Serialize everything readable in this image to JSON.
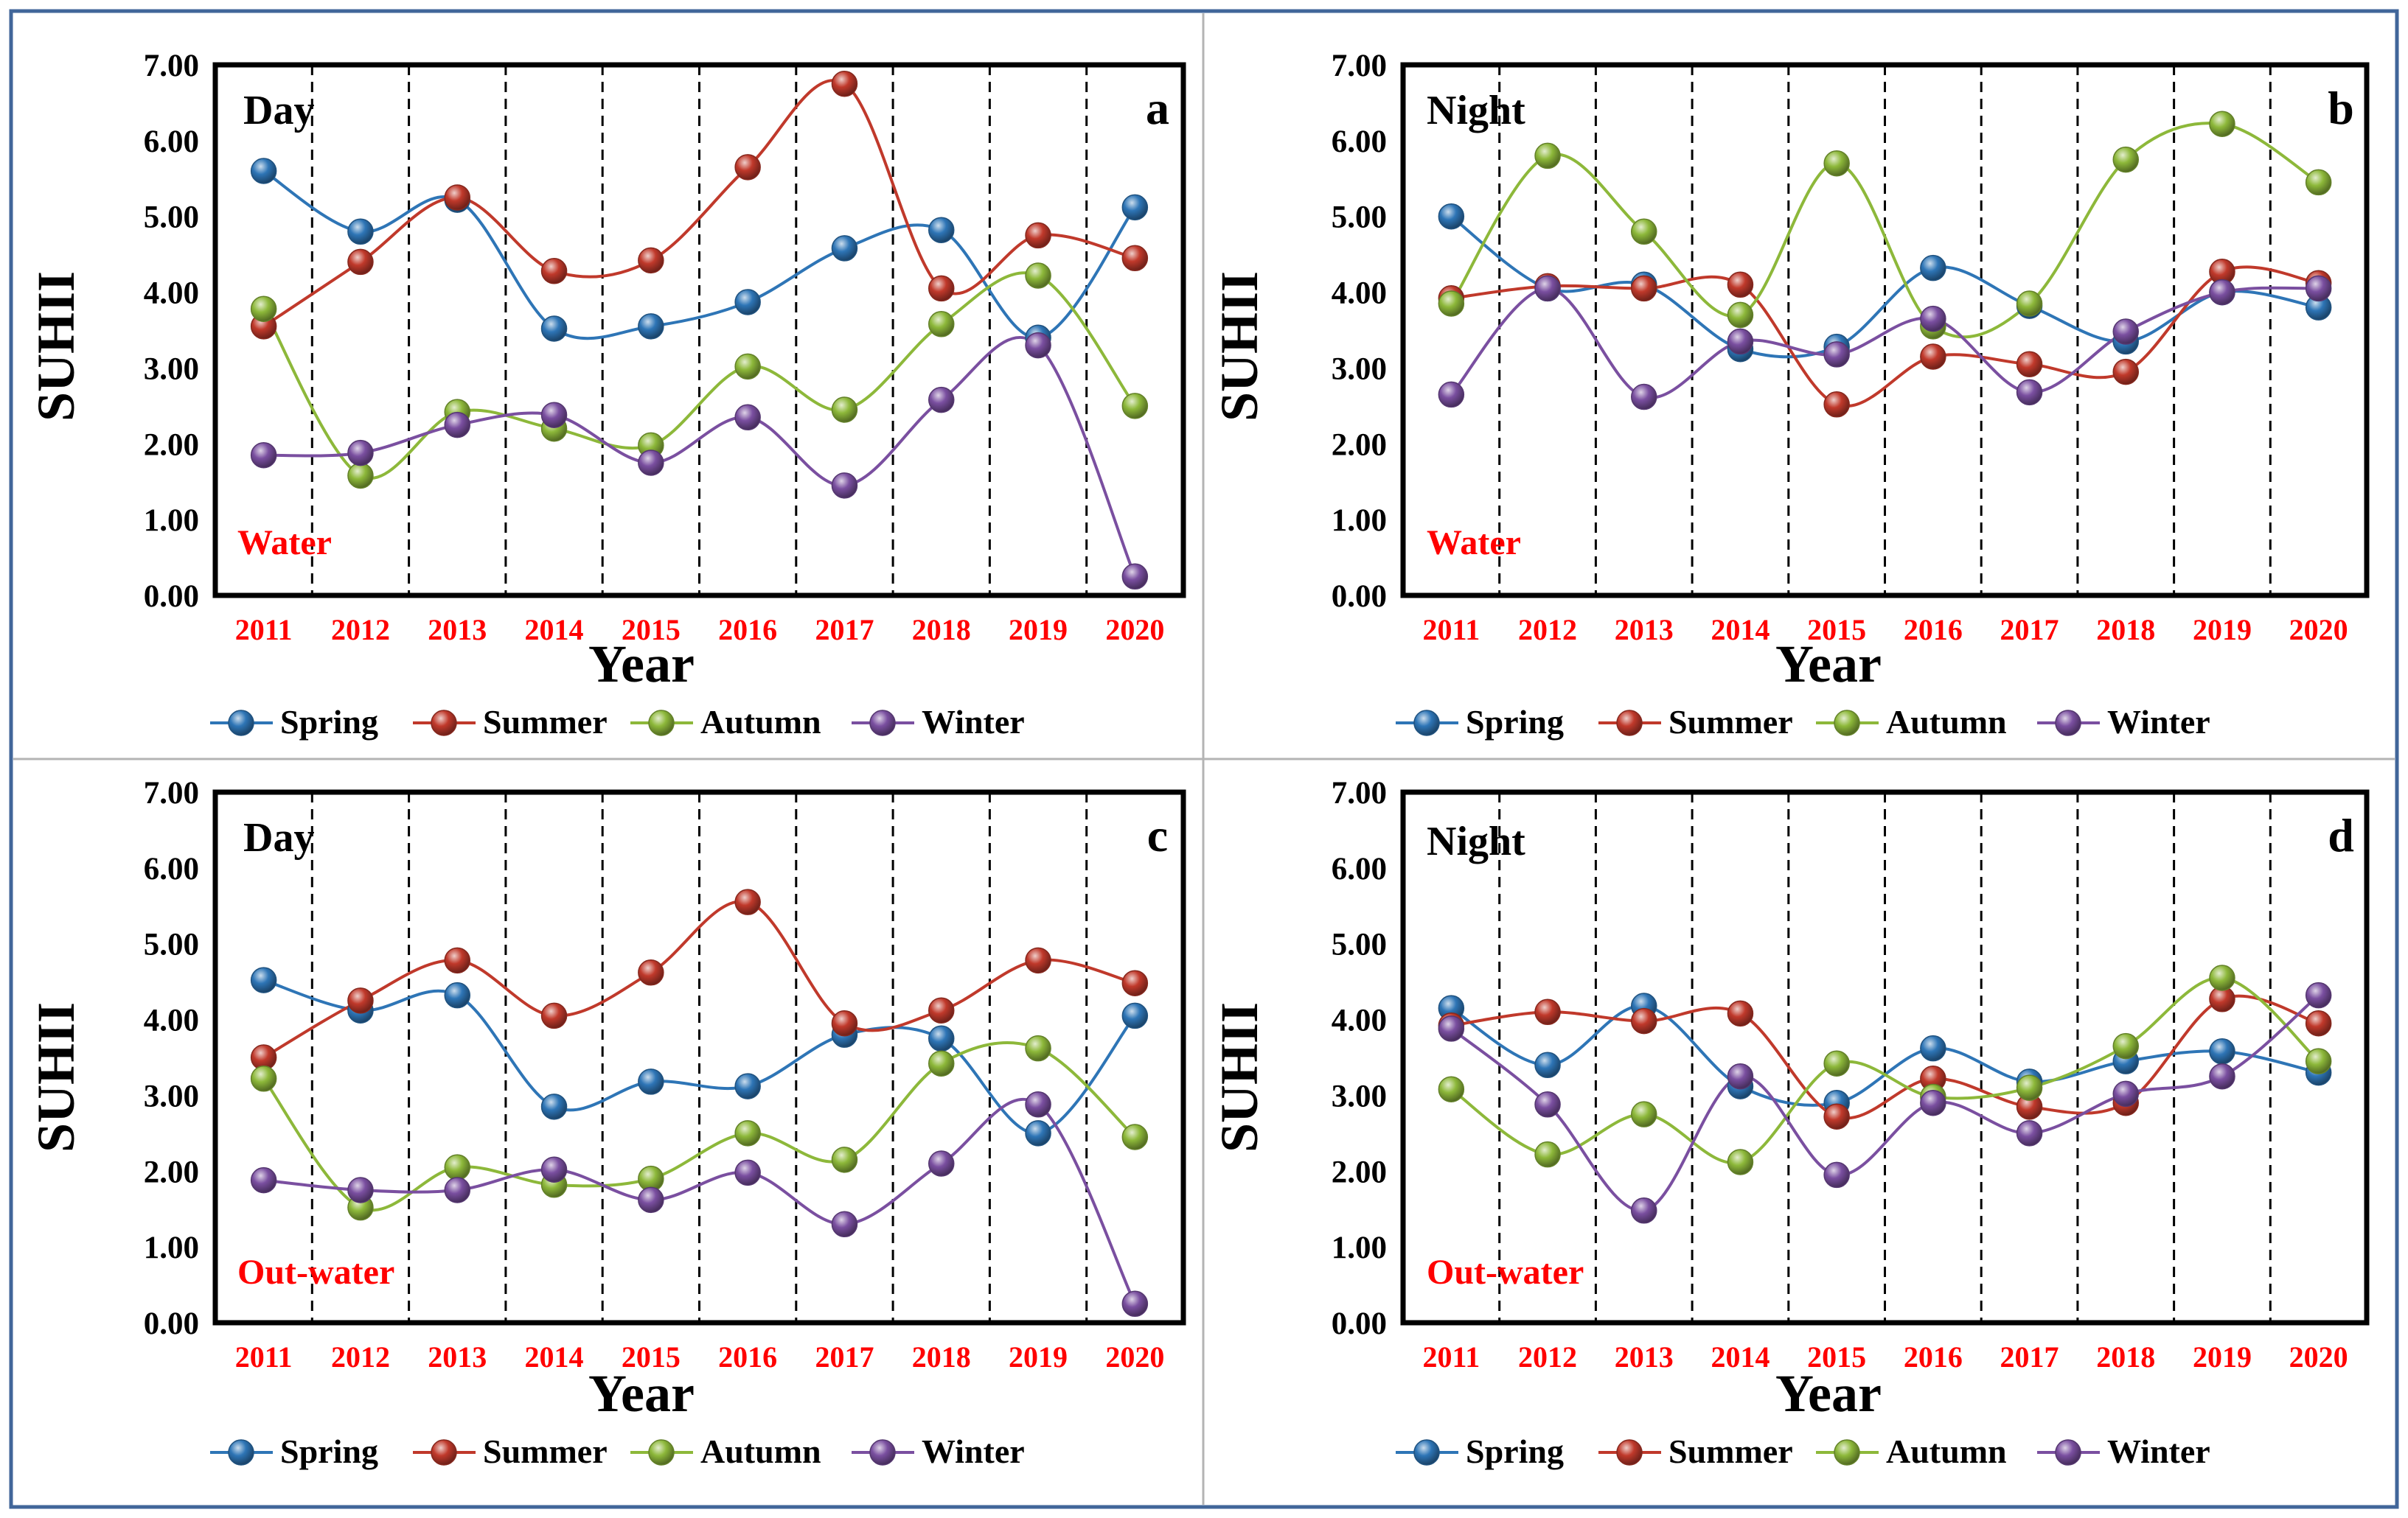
{
  "colors": {
    "frame": "#41669A",
    "divider": "#B4B4B4",
    "tick_text": "#000000",
    "year_text": "#FF0000",
    "location_text": "#FF0000",
    "spring": "#2E75B6",
    "summer": "#C0392B",
    "autumn": "#8DB83A",
    "winter": "#7A4FA0"
  },
  "icons": {
    "marker": "gradient-sphere-icon"
  },
  "chart_data": [
    {
      "type": "line",
      "panel_letter": "a",
      "time_label": "Day",
      "location_label": "Water",
      "xlabel": "Year",
      "ylabel": "SUHII",
      "categories": [
        "2011",
        "2012",
        "2013",
        "2014",
        "2015",
        "2016",
        "2017",
        "2018",
        "2019",
        "2020"
      ],
      "ylim": [
        0,
        7
      ],
      "yticks": [
        "0.00",
        "1.00",
        "2.00",
        "3.00",
        "4.00",
        "5.00",
        "6.00",
        "7.00"
      ],
      "grid": "vertical dashed separators between years",
      "legend_position": "bottom",
      "series": [
        {
          "name": "Spring",
          "values": [
            5.6,
            4.8,
            5.22,
            3.52,
            3.55,
            3.87,
            4.58,
            4.82,
            3.4,
            5.12
          ]
        },
        {
          "name": "Summer",
          "values": [
            3.55,
            4.4,
            5.25,
            4.28,
            4.42,
            5.65,
            6.75,
            4.05,
            4.75,
            4.45
          ]
        },
        {
          "name": "Autumn",
          "values": [
            3.78,
            1.58,
            2.42,
            2.2,
            1.98,
            3.02,
            2.45,
            3.58,
            4.22,
            2.5
          ]
        },
        {
          "name": "Winter",
          "values": [
            1.85,
            1.88,
            2.25,
            2.38,
            1.75,
            2.35,
            1.45,
            2.58,
            3.3,
            0.25
          ]
        }
      ]
    },
    {
      "type": "line",
      "panel_letter": "b",
      "time_label": "Night",
      "location_label": "Water",
      "xlabel": "Year",
      "ylabel": "SUHII",
      "categories": [
        "2011",
        "2012",
        "2013",
        "2014",
        "2015",
        "2016",
        "2017",
        "2018",
        "2019",
        "2020"
      ],
      "ylim": [
        0,
        7
      ],
      "yticks": [
        "0.00",
        "1.00",
        "2.00",
        "3.00",
        "4.00",
        "5.00",
        "6.00",
        "7.00"
      ],
      "grid": "vertical dashed separators between years",
      "legend_position": "bottom",
      "series": [
        {
          "name": "Spring",
          "values": [
            5.0,
            4.05,
            4.1,
            3.25,
            3.28,
            4.32,
            3.82,
            3.35,
            4.0,
            3.8
          ]
        },
        {
          "name": "Summer",
          "values": [
            3.92,
            4.08,
            4.05,
            4.1,
            2.52,
            3.15,
            3.05,
            2.95,
            4.27,
            4.12
          ]
        },
        {
          "name": "Autumn",
          "values": [
            3.85,
            5.8,
            4.8,
            3.7,
            5.7,
            3.55,
            3.85,
            5.75,
            6.22,
            5.45
          ]
        },
        {
          "name": "Winter",
          "values": [
            2.65,
            4.05,
            2.62,
            3.35,
            3.18,
            3.65,
            2.68,
            3.48,
            4.0,
            4.05
          ]
        }
      ]
    },
    {
      "type": "line",
      "panel_letter": "c",
      "time_label": "Day",
      "location_label": "Out-water",
      "xlabel": "Year",
      "ylabel": "SUHII",
      "categories": [
        "2011",
        "2012",
        "2013",
        "2014",
        "2015",
        "2016",
        "2017",
        "2018",
        "2019",
        "2020"
      ],
      "ylim": [
        0,
        7
      ],
      "yticks": [
        "0.00",
        "1.00",
        "2.00",
        "3.00",
        "4.00",
        "5.00",
        "6.00",
        "7.00"
      ],
      "grid": "vertical dashed separators between years",
      "legend_position": "bottom",
      "series": [
        {
          "name": "Spring",
          "values": [
            4.52,
            4.12,
            4.32,
            2.85,
            3.18,
            3.12,
            3.8,
            3.75,
            2.5,
            4.05
          ]
        },
        {
          "name": "Summer",
          "values": [
            3.5,
            4.25,
            4.78,
            4.05,
            4.62,
            5.55,
            3.95,
            4.12,
            4.78,
            4.48
          ]
        },
        {
          "name": "Autumn",
          "values": [
            3.22,
            1.52,
            2.05,
            1.82,
            1.9,
            2.5,
            2.15,
            3.42,
            3.62,
            2.45
          ]
        },
        {
          "name": "Winter",
          "values": [
            1.88,
            1.75,
            1.75,
            2.02,
            1.62,
            1.98,
            1.3,
            2.1,
            2.88,
            0.25
          ]
        }
      ]
    },
    {
      "type": "line",
      "panel_letter": "d",
      "time_label": "Night",
      "location_label": "Out-water",
      "xlabel": "Year",
      "ylabel": "SUHII",
      "categories": [
        "2011",
        "2012",
        "2013",
        "2014",
        "2015",
        "2016",
        "2017",
        "2018",
        "2019",
        "2020"
      ],
      "ylim": [
        0,
        7
      ],
      "yticks": [
        "0.00",
        "1.00",
        "2.00",
        "3.00",
        "4.00",
        "5.00",
        "6.00",
        "7.00"
      ],
      "grid": "vertical dashed separators between years",
      "legend_position": "bottom",
      "series": [
        {
          "name": "Spring",
          "values": [
            4.15,
            3.4,
            4.18,
            3.12,
            2.9,
            3.62,
            3.18,
            3.45,
            3.58,
            3.3
          ]
        },
        {
          "name": "Summer",
          "values": [
            3.92,
            4.1,
            3.98,
            4.08,
            2.72,
            3.22,
            2.85,
            2.9,
            4.27,
            3.95
          ]
        },
        {
          "name": "Autumn",
          "values": [
            3.08,
            2.22,
            2.75,
            2.12,
            3.42,
            2.98,
            3.1,
            3.65,
            4.55,
            3.45
          ]
        },
        {
          "name": "Winter",
          "values": [
            3.88,
            2.88,
            1.48,
            3.25,
            1.95,
            2.9,
            2.5,
            3.02,
            3.25,
            4.32
          ]
        }
      ]
    }
  ]
}
